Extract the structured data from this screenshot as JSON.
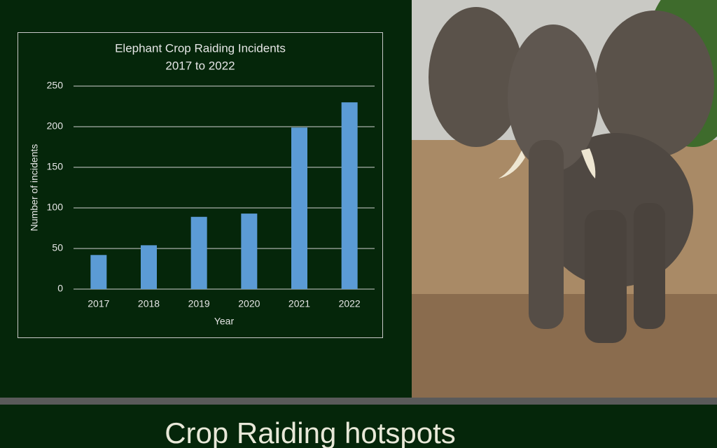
{
  "slide_title": "Crop Raiding hotspots",
  "chart_data": {
    "type": "bar",
    "title": "Elephant Crop Raiding Incidents",
    "subtitle": "2017 to 2022",
    "x_label": "Year",
    "y_label": "Number of incidents",
    "categories": [
      "2017",
      "2018",
      "2019",
      "2020",
      "2021",
      "2022"
    ],
    "values": [
      42,
      54,
      89,
      93,
      199,
      230
    ],
    "color": "#5b9bd5",
    "ylim": [
      0,
      250
    ],
    "yticks": [
      0,
      50,
      100,
      150,
      200,
      250
    ],
    "grid": true
  }
}
